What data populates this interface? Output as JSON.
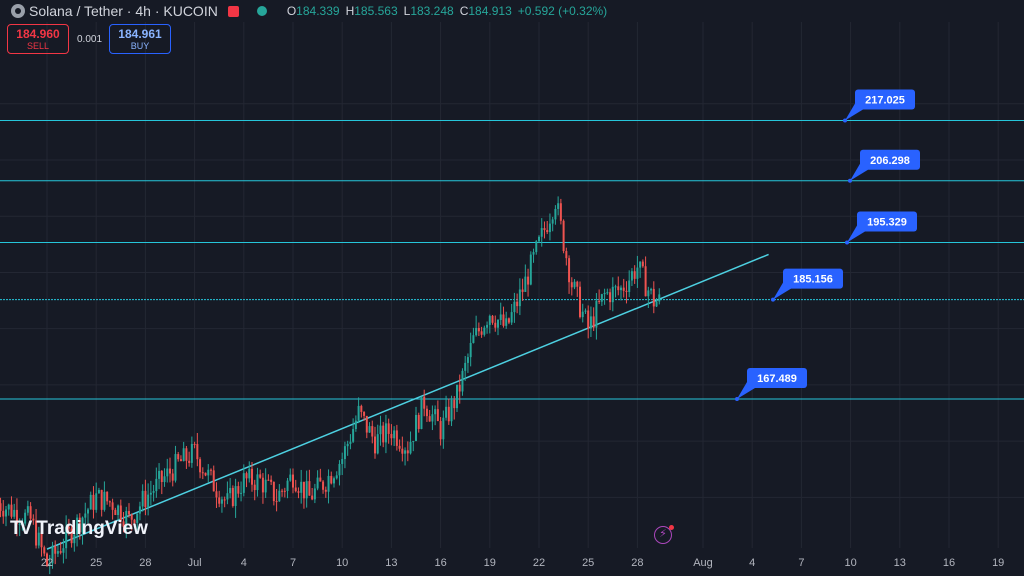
{
  "header": {
    "title": "Solana / Tether · 4h · KUCOIN",
    "ohlc": [
      {
        "k": "O",
        "v": "184.339"
      },
      {
        "k": "H",
        "v": "185.563"
      },
      {
        "k": "L",
        "v": "183.248"
      },
      {
        "k": "C",
        "v": "184.913"
      },
      {
        "k": "",
        "v": "+0.592 (+0.32%)"
      }
    ]
  },
  "trade": {
    "sell_price": "184.960",
    "sell_label": "SELL",
    "spread": "0.001",
    "buy_price": "184.961",
    "buy_label": "BUY"
  },
  "brand": "TradingView",
  "colors": {
    "up": "#26a69a",
    "down": "#ef5350",
    "level": "#26c6da",
    "trend": "#4dd0e1",
    "label": "#2962ff"
  },
  "chart_data": {
    "type": "candlestick",
    "timeframe": "4h",
    "x_ticks": [
      "22",
      "25",
      "28",
      "Jul",
      "4",
      "7",
      "10",
      "13",
      "16",
      "19",
      "22",
      "25",
      "28",
      "Aug",
      "4",
      "7",
      "10",
      "13",
      "16",
      "19"
    ],
    "x_range": [
      "2024-06-22",
      "2024-08-19"
    ],
    "last_candle": "2024-07-29",
    "y_range": [
      141,
      226
    ],
    "levels": [
      {
        "label": "217.025",
        "value": 217.025
      },
      {
        "label": "206.298",
        "value": 206.298
      },
      {
        "label": "195.329",
        "value": 195.329
      },
      {
        "label": "185.156",
        "value": 185.156
      },
      {
        "label": "167.489",
        "value": 167.489
      }
    ],
    "trendline": [
      {
        "date": "2024-06-22",
        "y": 140.8
      },
      {
        "date": "2024-08-05",
        "y": 193.2
      }
    ],
    "price_path": [
      {
        "date": "2024-06-19",
        "close": 149
      },
      {
        "date": "2024-06-21",
        "close": 146
      },
      {
        "date": "2024-06-22",
        "close": 138
      },
      {
        "date": "2024-06-23",
        "close": 142
      },
      {
        "date": "2024-06-24",
        "close": 146
      },
      {
        "date": "2024-06-25",
        "close": 150
      },
      {
        "date": "2024-06-26",
        "close": 149
      },
      {
        "date": "2024-06-27",
        "close": 146
      },
      {
        "date": "2024-06-28",
        "close": 150
      },
      {
        "date": "2024-06-29",
        "close": 153
      },
      {
        "date": "2024-06-30",
        "close": 156
      },
      {
        "date": "2024-07-01",
        "close": 158
      },
      {
        "date": "2024-07-02",
        "close": 153
      },
      {
        "date": "2024-07-03",
        "close": 149
      },
      {
        "date": "2024-07-04",
        "close": 153
      },
      {
        "date": "2024-07-05",
        "close": 153
      },
      {
        "date": "2024-07-06",
        "close": 150
      },
      {
        "date": "2024-07-07",
        "close": 154
      },
      {
        "date": "2024-07-08",
        "close": 150
      },
      {
        "date": "2024-07-09",
        "close": 153
      },
      {
        "date": "2024-07-10",
        "close": 157
      },
      {
        "date": "2024-07-11",
        "close": 165
      },
      {
        "date": "2024-07-12",
        "close": 160
      },
      {
        "date": "2024-07-13",
        "close": 162
      },
      {
        "date": "2024-07-14",
        "close": 159
      },
      {
        "date": "2024-07-15",
        "close": 167
      },
      {
        "date": "2024-07-16",
        "close": 162
      },
      {
        "date": "2024-07-17",
        "close": 168
      },
      {
        "date": "2024-07-18",
        "close": 178
      },
      {
        "date": "2024-07-19",
        "close": 183
      },
      {
        "date": "2024-07-20",
        "close": 180
      },
      {
        "date": "2024-07-21",
        "close": 187
      },
      {
        "date": "2024-07-22",
        "close": 195
      },
      {
        "date": "2024-07-23",
        "close": 203
      },
      {
        "date": "2024-07-24",
        "close": 188
      },
      {
        "date": "2024-07-25",
        "close": 180
      },
      {
        "date": "2024-07-26",
        "close": 186
      },
      {
        "date": "2024-07-27",
        "close": 187
      },
      {
        "date": "2024-07-28",
        "close": 191
      },
      {
        "date": "2024-07-29",
        "close": 184.9
      }
    ]
  }
}
